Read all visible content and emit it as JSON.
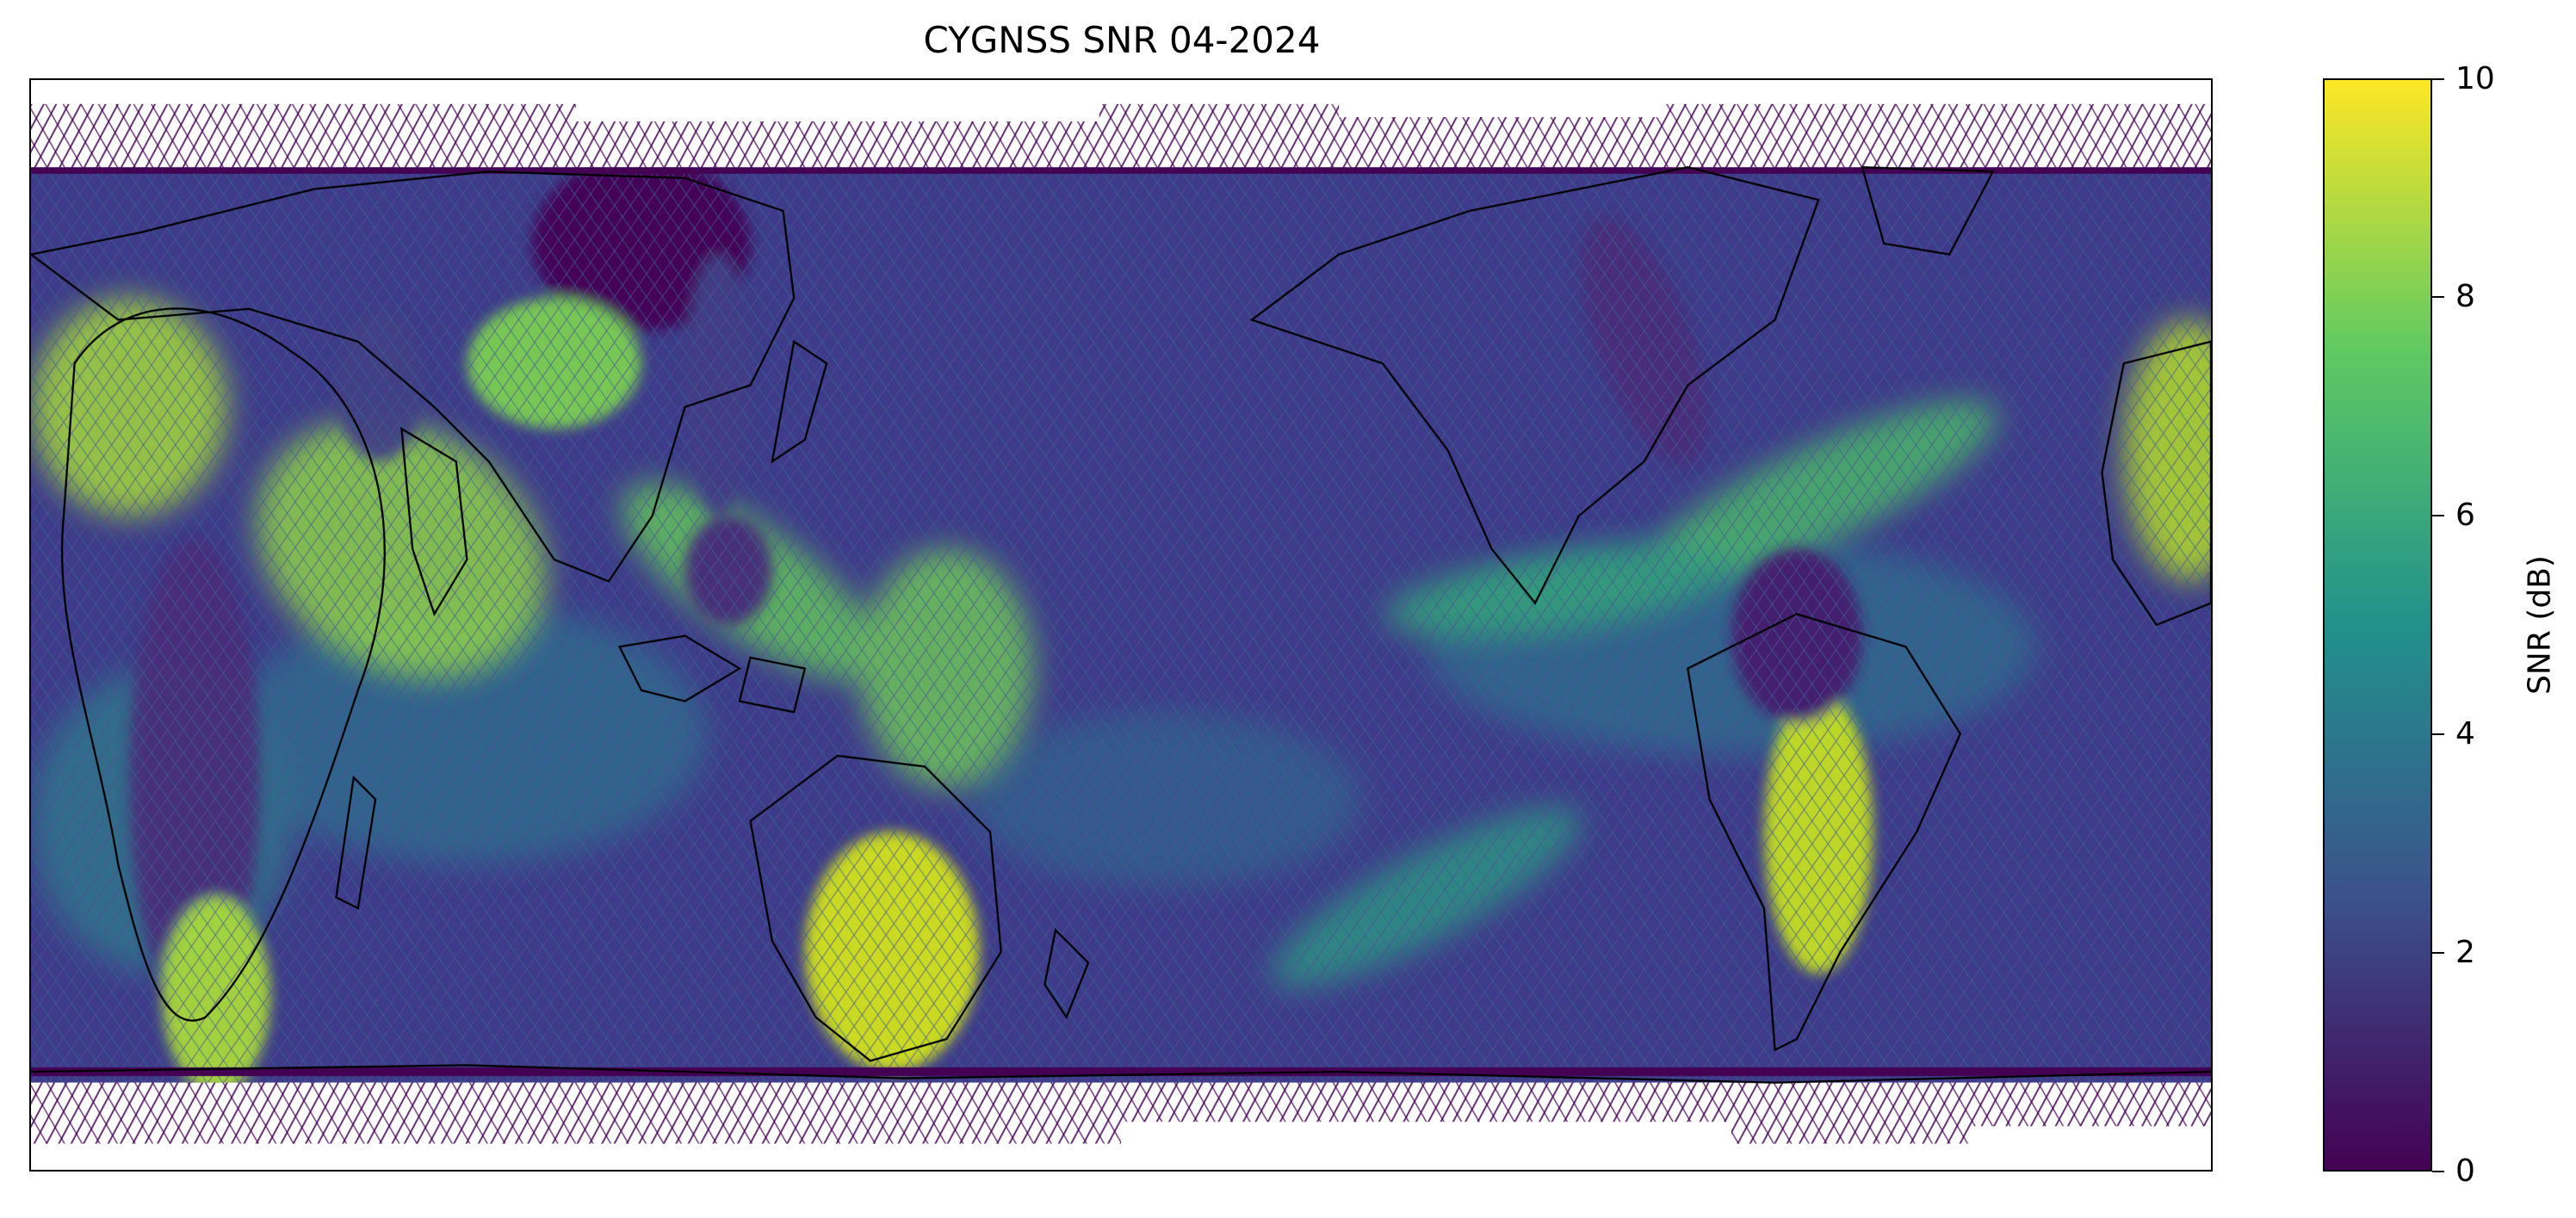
{
  "title": "CYGNSS SNR 04-2024",
  "colorbar": {
    "label": "SNR (dB)",
    "min": 0,
    "max": 10,
    "ticks": [
      "0",
      "2",
      "4",
      "6",
      "8",
      "10"
    ],
    "colormap": "viridis",
    "colors": [
      "#440154",
      "#3b528b",
      "#21918c",
      "#5ec962",
      "#fde725"
    ]
  },
  "map": {
    "projection": "plate-carree",
    "central_longitude": 180,
    "coastlines": true,
    "country_borders": true,
    "data_latitude_range": [
      -38,
      38
    ]
  }
}
